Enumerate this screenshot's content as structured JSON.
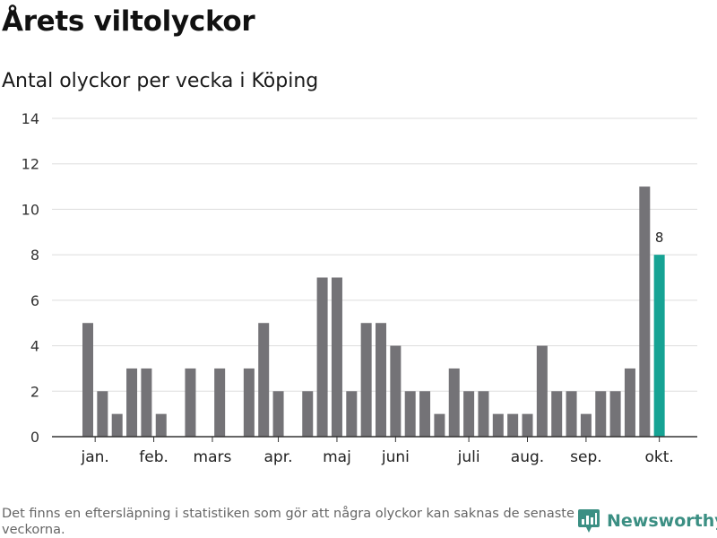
{
  "title": "Årets viltolyckor",
  "subtitle": "Antal olyckor per vecka i Köping",
  "footnote": "Det finns en eftersläpning i statistiken som gör att några olyckor kan saknas de senaste veckorna.",
  "brand": {
    "name": "Newsworthy",
    "icon": "newsworthy-logo-icon"
  },
  "colors": {
    "bar": "#747377",
    "highlight": "#16a394",
    "grid": "#dddddd",
    "axis": "#333333",
    "brand": "#3b8f83"
  },
  "chart_data": {
    "type": "bar",
    "title": "Årets viltolyckor",
    "subtitle": "Antal olyckor per vecka i Köping",
    "xlabel": "",
    "ylabel": "",
    "ylim": [
      0,
      14
    ],
    "yticks": [
      0,
      2,
      4,
      6,
      8,
      10,
      12,
      14
    ],
    "grid": true,
    "legend": "none",
    "weeks": [
      1,
      2,
      3,
      4,
      5,
      6,
      7,
      8,
      9,
      10,
      11,
      12,
      13,
      14,
      15,
      16,
      17,
      18,
      19,
      20,
      21,
      22,
      23,
      24,
      25,
      26,
      27,
      28,
      29,
      30,
      31,
      32,
      33,
      34,
      35,
      36,
      37,
      38,
      39,
      40
    ],
    "values": [
      5,
      2,
      1,
      3,
      3,
      1,
      0,
      3,
      0,
      3,
      0,
      3,
      5,
      2,
      0,
      2,
      7,
      7,
      2,
      5,
      5,
      4,
      2,
      2,
      1,
      3,
      2,
      2,
      1,
      1,
      1,
      4,
      2,
      2,
      1,
      2,
      2,
      3,
      11,
      8
    ],
    "month_labels": [
      {
        "label": "jan.",
        "week": 1.5
      },
      {
        "label": "feb.",
        "week": 5.5
      },
      {
        "label": "mars",
        "week": 9.5
      },
      {
        "label": "apr.",
        "week": 14.0
      },
      {
        "label": "maj",
        "week": 18.0
      },
      {
        "label": "juni",
        "week": 22.0
      },
      {
        "label": "juli",
        "week": 27.0
      },
      {
        "label": "aug.",
        "week": 31.0
      },
      {
        "label": "sep.",
        "week": 35.0
      },
      {
        "label": "okt.",
        "week": 40.0
      }
    ],
    "highlight_week": 40,
    "highlight_label": "8"
  }
}
